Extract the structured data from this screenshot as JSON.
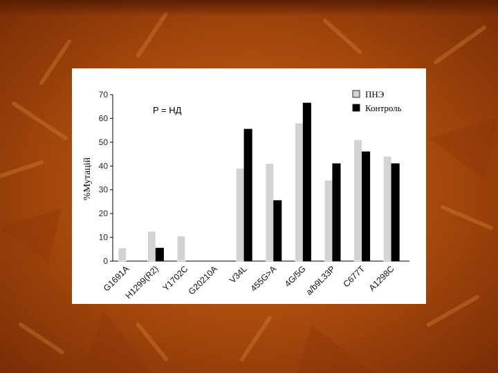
{
  "theme": {
    "background": "#a5480c",
    "panel": "#ffffff",
    "series_colors": [
      "#d3d3d3",
      "#000000"
    ]
  },
  "chart_data": {
    "type": "bar",
    "ylabel": "%Мутацій",
    "ylim": [
      0,
      70
    ],
    "yticks": [
      "0",
      "10",
      "20",
      "30",
      "40",
      "50",
      "60",
      "70"
    ],
    "annotation": "P = НД",
    "legend_position": "top-right",
    "categories": [
      "G1691A",
      "H1299(R2)",
      "Y1702C",
      "G20210A",
      "V34L",
      "455G>A",
      "4G/5G",
      "a/b9L33P",
      "C677T",
      "A1298C"
    ],
    "series": [
      {
        "name": "ПНЭ",
        "values": [
          5.5,
          12.5,
          10.5,
          0,
          39,
          41,
          58,
          34,
          51,
          44
        ]
      },
      {
        "name": "Контроль",
        "values": [
          0,
          5.5,
          0,
          0,
          55.5,
          25.5,
          66.5,
          41,
          46,
          41
        ]
      }
    ]
  }
}
